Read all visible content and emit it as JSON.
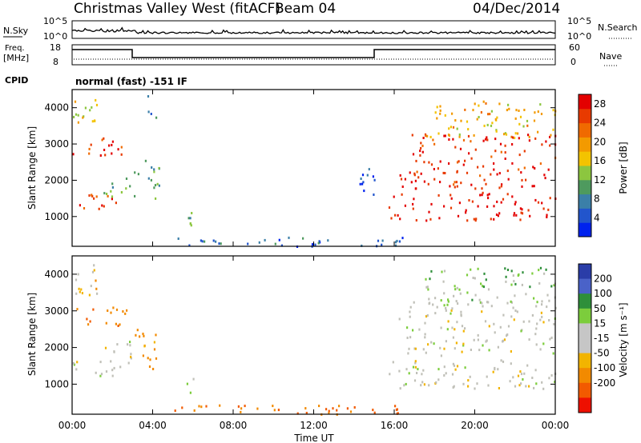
{
  "header": {
    "station": "Christmas Valley West (fitACF)",
    "beam": "Beam 04",
    "date": "04/Dec/2014"
  },
  "strips": {
    "nsky_label": "N.Sky",
    "nsearch_label": "N.Search",
    "nsky_ticks": [
      "10^5",
      "10^0"
    ],
    "nsky_ticks_right": [
      "10^5",
      "10^0"
    ],
    "freq_label_1": "Freq.",
    "freq_label_2": "[MHz]",
    "freq_ticks": [
      "18",
      "8"
    ],
    "nave_ticks": [
      "60",
      "0"
    ],
    "nave_label": "Nave",
    "cpid_label": "CPID",
    "cpid_text": "normal (fast) -151 IF"
  },
  "colors": {
    "power_scale": [
      "#0022ee",
      "#2255cc",
      "#3b7fa8",
      "#4e9a5e",
      "#8cc63f",
      "#f3c300",
      "#f39a00",
      "#f06a00",
      "#e83a00",
      "#e30000"
    ],
    "velocity_scale": [
      "#2a3da8",
      "#4a62c8",
      "#2e8f3a",
      "#7ccd3c",
      "#c6c6c6",
      "#c6c6c6",
      "#f2b400",
      "#f28a00",
      "#f25a00",
      "#ee1000"
    ],
    "ground_scatter": "#c0c0b8"
  },
  "chart_data": [
    {
      "type": "heatmap",
      "panel": "power",
      "ylabel": "Slant Range [km]",
      "xlim": [
        0,
        24
      ],
      "ylim": [
        180,
        4500
      ],
      "yticks": [
        "1000",
        "2000",
        "3000",
        "4000"
      ],
      "xticks": [
        "00:00",
        "04:00",
        "08:00",
        "12:00",
        "16:00",
        "20:00",
        "00:00"
      ],
      "colorbar": {
        "label": "Power [dB]",
        "ticks": [
          "4",
          "8",
          "12",
          "16",
          "20",
          "24",
          "28"
        ],
        "range": [
          0,
          30
        ]
      },
      "regions": [
        {
          "t": [
            0.0,
            2.2
          ],
          "r": [
            1200,
            1650
          ],
          "value": 27
        },
        {
          "t": [
            0.0,
            2.8
          ],
          "r": [
            2600,
            3200
          ],
          "value": 26
        },
        {
          "t": [
            0.0,
            1.2
          ],
          "r": [
            3400,
            4300
          ],
          "value": 16
        },
        {
          "t": [
            1.5,
            2.9
          ],
          "r": [
            1500,
            2200
          ],
          "value": 12
        },
        {
          "t": [
            3.0,
            4.3
          ],
          "r": [
            1400,
            2600
          ],
          "value": 10
        },
        {
          "t": [
            3.6,
            4.2
          ],
          "r": [
            3700,
            4400
          ],
          "value": 8
        },
        {
          "t": [
            5.5,
            6.2
          ],
          "r": [
            600,
            1200
          ],
          "value": 10
        },
        {
          "t": [
            5.0,
            16.5
          ],
          "r": [
            200,
            450
          ],
          "value": 6
        },
        {
          "t": [
            14.2,
            15.0
          ],
          "r": [
            1400,
            2400
          ],
          "value": 4
        },
        {
          "t": [
            15.7,
            24.0
          ],
          "r": [
            900,
            1700
          ],
          "value": 28
        },
        {
          "t": [
            16.2,
            24.0
          ],
          "r": [
            1800,
            3300
          ],
          "value": 27
        },
        {
          "t": [
            17.5,
            24.0
          ],
          "r": [
            3200,
            4200
          ],
          "value": 18
        }
      ]
    },
    {
      "type": "heatmap",
      "panel": "velocity",
      "ylabel": "Slant Range [km]",
      "xlabel": "Time UT",
      "xlim": [
        0,
        24
      ],
      "ylim": [
        180,
        4500
      ],
      "yticks": [
        "1000",
        "2000",
        "3000",
        "4000"
      ],
      "xticks": [
        "00:00",
        "04:00",
        "08:00",
        "12:00",
        "16:00",
        "20:00",
        "00:00"
      ],
      "colorbar": {
        "label": "Velocity [m s⁻¹]",
        "ticks": [
          "200",
          "100",
          "50",
          "15",
          "-15",
          "-50",
          "-100",
          "-200"
        ]
      },
      "regions": [
        {
          "t": [
            0.0,
            2.2
          ],
          "r": [
            1200,
            1700
          ],
          "value": 0
        },
        {
          "t": [
            0.0,
            2.8
          ],
          "r": [
            2600,
            3200
          ],
          "value": -60
        },
        {
          "t": [
            0.0,
            1.2
          ],
          "r": [
            3400,
            4300
          ],
          "value": -20
        },
        {
          "t": [
            1.5,
            2.9
          ],
          "r": [
            1500,
            2200
          ],
          "value": 0
        },
        {
          "t": [
            3.0,
            4.3
          ],
          "r": [
            1400,
            2600
          ],
          "value": -50
        },
        {
          "t": [
            5.5,
            6.2
          ],
          "r": [
            600,
            1200
          ],
          "value": 0
        },
        {
          "t": [
            5.0,
            16.5
          ],
          "r": [
            200,
            450
          ],
          "value": -70
        },
        {
          "t": [
            15.7,
            24.0
          ],
          "r": [
            900,
            1700
          ],
          "value": 0
        },
        {
          "t": [
            16.2,
            24.0
          ],
          "r": [
            1800,
            3300
          ],
          "value": 0
        },
        {
          "t": [
            17.5,
            24.0
          ],
          "r": [
            3200,
            4200
          ],
          "value": 20
        }
      ]
    }
  ]
}
